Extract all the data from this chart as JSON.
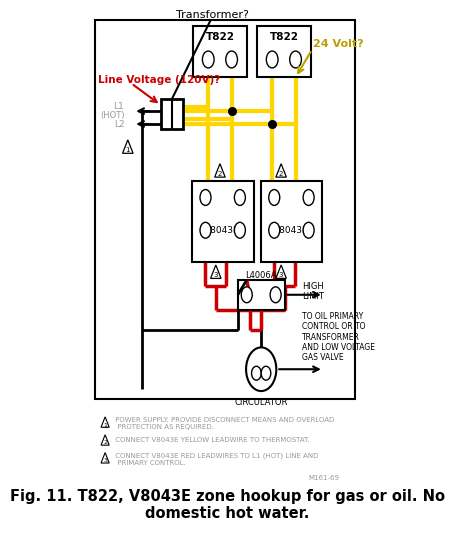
{
  "title": "Fig. 11. T822, V8043E zone hookup for gas or oil. No\ndomestic hot water.",
  "background_color": "#ffffff",
  "annotation_transformer": "Transformer?",
  "annotation_line_voltage": "Line Voltage (120V)?",
  "annotation_24volt": "24 Volt?",
  "label_l1": "L1\n(HOT)\nL2",
  "label_t822": "T822",
  "label_v8043e": "V8043E",
  "label_l4006a": "L4006A",
  "label_high_limit": "HIGH\nLIMIT",
  "label_to_oil": "TO OIL PRIMARY\nCONTROL OR TO\nTRANSFORMER\nAND LOW VOLTAGE\nGAS VALVE",
  "label_circulator": "CIRCULATOR",
  "label_m": "M161-69",
  "note1_tri": "1",
  "note1": " POWER SUPPLY. PROVIDE DISCONNECT MEANS AND OVERLOAD\n  PROTECTION AS REQUIRED.",
  "note2_tri": "2",
  "note2": " CONNECT V8043E YELLOW LEADWIRE TO THERMOSTAT.",
  "note3_tri": "3",
  "note3": " CONNECT V8043E RED LEADWIRES TO L1 (HOT) LINE AND\n  PRIMARY CONTROL.",
  "yellow_color": "#FFD700",
  "red_color": "#CC0000",
  "black_color": "#000000",
  "red_annotation_color": "#CC0000",
  "yellow_annotation_color": "#B8A000",
  "gray_color": "#999999",
  "border": [
    8,
    8,
    385,
    390
  ]
}
